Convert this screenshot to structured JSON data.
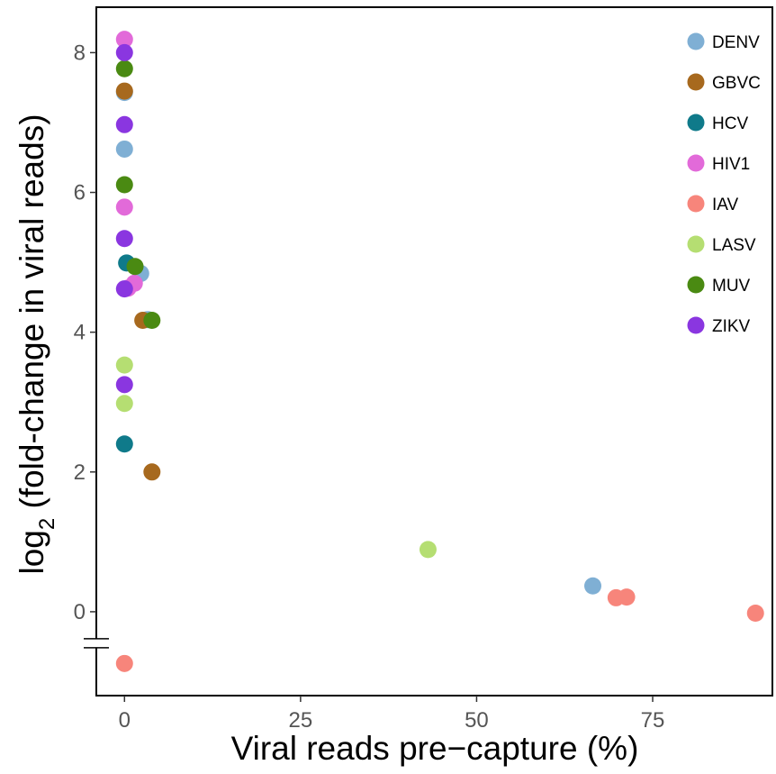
{
  "chart_data": {
    "type": "scatter",
    "xlabel": "Viral reads pre−capture (%)",
    "ylabel_main": "log",
    "ylabel_sub": "2",
    "ylabel_rest": " (fold-change in viral reads)",
    "xlim": [
      -4,
      92
    ],
    "ylim": [
      -1.2,
      8.65
    ],
    "x_ticks": [
      0,
      25,
      50,
      75
    ],
    "x_tick_labels": [
      "0",
      "25",
      "50",
      "75"
    ],
    "y_ticks": [
      0,
      2,
      4,
      6,
      8
    ],
    "y_tick_labels": [
      "0",
      "2",
      "4",
      "6",
      "8"
    ],
    "y_axis_break_at": -0.45,
    "grid": false,
    "legend_position": "top-right",
    "series": [
      {
        "name": "DENV",
        "color": "#7FAFD4",
        "points": [
          [
            0.0,
            7.43
          ],
          [
            0.0,
            6.62
          ],
          [
            2.3,
            4.84
          ],
          [
            3.3,
            4.18
          ],
          [
            66.5,
            0.37
          ]
        ]
      },
      {
        "name": "GBVC",
        "color": "#A7691E",
        "points": [
          [
            0.0,
            7.45
          ],
          [
            2.6,
            4.17
          ],
          [
            3.9,
            2.0
          ]
        ]
      },
      {
        "name": "HCV",
        "color": "#0F7A8A",
        "points": [
          [
            0.3,
            4.99
          ],
          [
            0.0,
            2.4
          ]
        ]
      },
      {
        "name": "HIV1",
        "color": "#E26AD9",
        "points": [
          [
            0.0,
            8.19
          ],
          [
            0.0,
            5.79
          ],
          [
            1.4,
            4.7
          ],
          [
            0.5,
            4.63
          ]
        ]
      },
      {
        "name": "IAV",
        "color": "#F7857B",
        "points": [
          [
            69.8,
            0.2
          ],
          [
            71.3,
            0.21
          ],
          [
            89.6,
            -0.02
          ],
          [
            0.0,
            -0.74
          ]
        ]
      },
      {
        "name": "LASV",
        "color": "#B5DE72",
        "points": [
          [
            0.0,
            3.53
          ],
          [
            0.0,
            2.98
          ],
          [
            43.1,
            0.89
          ]
        ]
      },
      {
        "name": "MUV",
        "color": "#4A8A12",
        "points": [
          [
            0.0,
            7.77
          ],
          [
            0.0,
            6.11
          ],
          [
            1.5,
            4.94
          ],
          [
            3.9,
            4.17
          ]
        ]
      },
      {
        "name": "ZIKV",
        "color": "#8A36E0",
        "points": [
          [
            0.0,
            8.0
          ],
          [
            0.0,
            6.97
          ],
          [
            0.0,
            5.34
          ],
          [
            0.0,
            4.62
          ],
          [
            0.0,
            3.25
          ]
        ]
      }
    ]
  }
}
